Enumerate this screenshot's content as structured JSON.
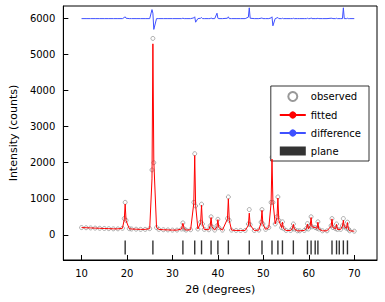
{
  "chart_data": {
    "type": "scatter",
    "x_label": "2θ (degrees)",
    "y_label": "Intensity (counts)",
    "xlim": [
      6,
      75
    ],
    "xticks": [
      10,
      20,
      30,
      40,
      50,
      60,
      70
    ],
    "ylim": [
      -700,
      6350
    ],
    "yticks": [
      0,
      1000,
      2000,
      3000,
      4000,
      5000,
      6000
    ],
    "legend": "right",
    "x": [
      10,
      11,
      12,
      13,
      14,
      15,
      16,
      17,
      18,
      19,
      19.4,
      19.6,
      19.8,
      20.5,
      21,
      22,
      23,
      24,
      25,
      25.5,
      25.7,
      25.9,
      26.5,
      27,
      28,
      29,
      30,
      31,
      32,
      32.3,
      32.6,
      33,
      34,
      34.7,
      34.9,
      35.1,
      35.6,
      36.2,
      36.4,
      36.6,
      37,
      38,
      38.3,
      38.5,
      38.7,
      39.3,
      39.8,
      40,
      40.2,
      41,
      42.1,
      42.3,
      42.5,
      43,
      44,
      45,
      46,
      46.7,
      46.9,
      47.1,
      48,
      49,
      49.5,
      49.7,
      49.9,
      50.5,
      51.2,
      51.7,
      51.9,
      52.1,
      52.6,
      53,
      53.2,
      53.4,
      54,
      54.2,
      54.4,
      55,
      56,
      56.4,
      56.6,
      56.8,
      57.5,
      58,
      59,
      59.5,
      59.7,
      59.9,
      60.3,
      60.5,
      60.7,
      61.4,
      61.8,
      62,
      62.2,
      63,
      64,
      64.9,
      65.1,
      65.3,
      65.9,
      66.1,
      66.3,
      67,
      67.4,
      67.6,
      67.8,
      68.3,
      68.5,
      68.7,
      69,
      70
    ],
    "series": [
      {
        "name": "observed",
        "type": "scatter",
        "marker": "circle",
        "color": "#808080",
        "values": [
          200,
          195,
          190,
          185,
          180,
          175,
          170,
          165,
          165,
          180,
          450,
          900,
          400,
          170,
          160,
          155,
          150,
          150,
          170,
          1800,
          5450,
          2000,
          200,
          150,
          140,
          135,
          130,
          130,
          160,
          330,
          160,
          130,
          140,
          900,
          2250,
          800,
          160,
          350,
          850,
          300,
          150,
          140,
          250,
          500,
          220,
          130,
          250,
          430,
          200,
          130,
          450,
          1050,
          400,
          130,
          120,
          120,
          120,
          300,
          700,
          280,
          120,
          130,
          350,
          700,
          300,
          150,
          200,
          900,
          2150,
          900,
          300,
          500,
          1050,
          400,
          200,
          360,
          180,
          120,
          120,
          180,
          300,
          160,
          110,
          110,
          120,
          180,
          310,
          160,
          250,
          500,
          220,
          200,
          180,
          360,
          160,
          110,
          110,
          250,
          450,
          200,
          170,
          300,
          150,
          150,
          250,
          450,
          220,
          180,
          350,
          160,
          110,
          100
        ]
      },
      {
        "name": "fitted",
        "type": "line",
        "line_style": "solid",
        "color": "#ff0000",
        "values": [
          200,
          195,
          190,
          185,
          180,
          175,
          170,
          165,
          165,
          180,
          420,
          850,
          390,
          170,
          160,
          155,
          150,
          150,
          170,
          1550,
          5300,
          2050,
          200,
          150,
          140,
          135,
          130,
          130,
          160,
          320,
          160,
          130,
          140,
          880,
          2200,
          820,
          160,
          340,
          820,
          300,
          150,
          140,
          250,
          480,
          220,
          130,
          230,
          420,
          200,
          130,
          440,
          1000,
          400,
          130,
          120,
          120,
          120,
          260,
          600,
          270,
          120,
          130,
          340,
          680,
          300,
          150,
          200,
          880,
          2100,
          950,
          300,
          480,
          1020,
          400,
          200,
          350,
          180,
          120,
          120,
          180,
          290,
          160,
          110,
          110,
          120,
          180,
          300,
          160,
          250,
          480,
          220,
          200,
          180,
          350,
          160,
          110,
          110,
          240,
          440,
          200,
          170,
          290,
          150,
          150,
          240,
          400,
          220,
          180,
          340,
          160,
          110,
          100
        ]
      },
      {
        "name": "difference",
        "type": "line",
        "line_style": "solid",
        "color": "#3f51ff",
        "values": [
          6000,
          6000,
          6000,
          6000,
          6000,
          6000,
          6000,
          6000,
          6000,
          6000,
          6030,
          6050,
          6010,
          6000,
          6000,
          6000,
          6000,
          6000,
          6000,
          6250,
          6150,
          5700,
          6000,
          6000,
          6000,
          6000,
          6000,
          6000,
          6000,
          6010,
          6000,
          6000,
          6000,
          6020,
          6050,
          5900,
          6000,
          6010,
          6030,
          6000,
          6000,
          6000,
          6000,
          6020,
          6000,
          6000,
          6150,
          6010,
          6000,
          6000,
          6010,
          6050,
          6000,
          6000,
          6000,
          6000,
          6000,
          6040,
          6300,
          6010,
          6000,
          6000,
          6010,
          6020,
          6000,
          6000,
          6000,
          6020,
          6050,
          5800,
          6000,
          6020,
          6030,
          6000,
          6000,
          6010,
          6000,
          6000,
          6000,
          6000,
          6010,
          6000,
          6000,
          6000,
          6000,
          6000,
          6010,
          6000,
          6000,
          6020,
          6000,
          6000,
          6000,
          6010,
          6000,
          6000,
          6000,
          6010,
          6010,
          6000,
          6000,
          6010,
          6000,
          6000,
          6000,
          6300,
          6000,
          6000,
          6010,
          6000,
          6000,
          6000
        ]
      },
      {
        "name": "plane",
        "type": "scatter",
        "marker": "vbar",
        "color": "#000000",
        "x": [
          19.6,
          25.7,
          32.3,
          34.9,
          36.4,
          38.5,
          40.0,
          42.3,
          46.9,
          49.7,
          51.9,
          53.2,
          54.2,
          56.6,
          59.7,
          60.5,
          61.4,
          62.0,
          65.1,
          66.1,
          66.7,
          67.6,
          68.5
        ],
        "values": [
          -350,
          -350,
          -350,
          -350,
          -350,
          -350,
          -350,
          -350,
          -350,
          -350,
          -350,
          -350,
          -350,
          -350,
          -350,
          -350,
          -350,
          -350,
          -350,
          -350,
          -350,
          -350,
          -350
        ]
      }
    ]
  }
}
